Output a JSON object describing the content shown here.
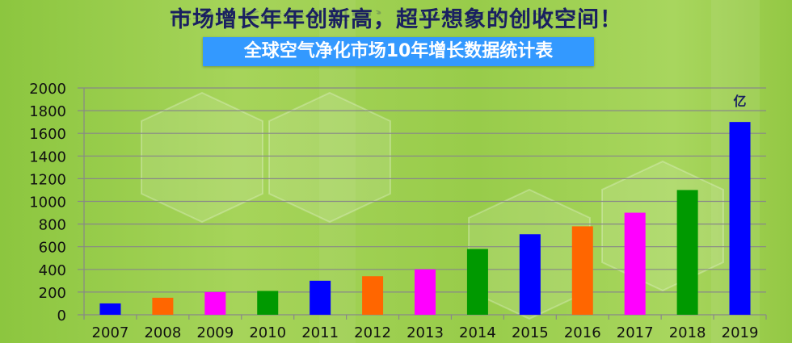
{
  "headline": "市场增长年年创新高，超乎想象的创收空间！",
  "banner": "全球空气净化市场10年增长数据统计表",
  "chart_data": {
    "type": "bar",
    "title": "全球空气净化市场10年增长数据统计表",
    "unit_label": "亿",
    "categories": [
      "2007",
      "2008",
      "2009",
      "2010",
      "2011",
      "2012",
      "2013",
      "2014",
      "2015",
      "2016",
      "2017",
      "2018",
      "2019"
    ],
    "values": [
      100,
      150,
      200,
      210,
      300,
      340,
      400,
      580,
      710,
      780,
      900,
      1100,
      1700
    ],
    "colors": [
      "#0000ff",
      "#ff6600",
      "#ff00ff",
      "#009900",
      "#0000ff",
      "#ff6600",
      "#ff00ff",
      "#009900",
      "#0000ff",
      "#ff6600",
      "#ff00ff",
      "#009900",
      "#0000ff"
    ],
    "yticks": [
      "0",
      "200",
      "400",
      "600",
      "800",
      "1000",
      "1200",
      "1400",
      "1600",
      "1800",
      "2000"
    ],
    "ylim": [
      0,
      2000
    ],
    "grid": true
  }
}
